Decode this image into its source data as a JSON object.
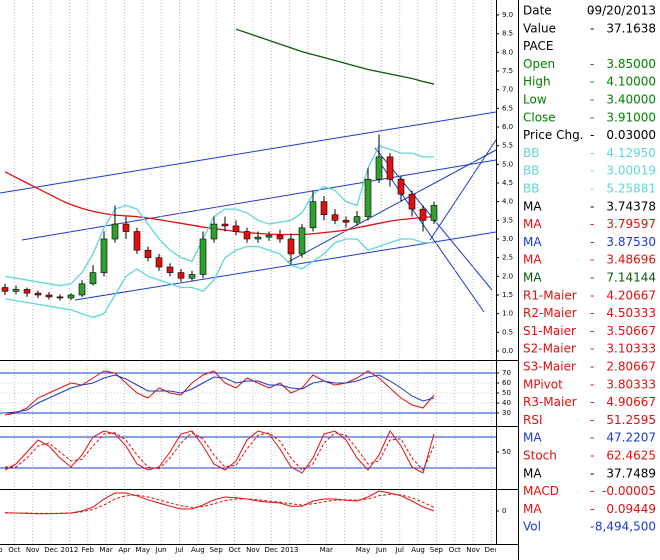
{
  "chart_data": [
    {
      "type": "candlestick",
      "open": [
        1.7,
        1.6,
        1.65,
        1.55,
        1.5,
        1.45,
        1.42,
        1.5,
        1.8,
        2.1,
        3.0,
        3.4,
        3.2,
        2.7,
        2.5,
        2.25,
        2.1,
        1.95,
        2.05,
        3.0,
        3.4,
        3.35,
        3.2,
        3.0,
        3.05,
        3.1,
        3.0,
        2.6,
        3.3,
        4.0,
        3.65,
        3.5,
        3.45,
        3.6,
        4.6,
        5.2,
        4.6,
        4.2,
        3.8,
        3.5
      ],
      "high": [
        1.8,
        1.75,
        1.7,
        1.62,
        1.58,
        1.52,
        1.55,
        1.9,
        2.3,
        3.2,
        3.9,
        3.6,
        3.3,
        2.8,
        2.6,
        2.35,
        2.2,
        2.15,
        3.2,
        3.6,
        3.6,
        3.5,
        3.3,
        3.2,
        3.2,
        3.25,
        3.15,
        3.4,
        4.3,
        4.15,
        3.8,
        3.6,
        3.75,
        4.9,
        5.8,
        5.3,
        4.7,
        4.3,
        3.9,
        4.0
      ],
      "low": [
        1.5,
        1.52,
        1.45,
        1.42,
        1.38,
        1.35,
        1.36,
        1.45,
        1.75,
        2.0,
        2.9,
        3.0,
        2.6,
        2.4,
        2.15,
        2.0,
        1.85,
        1.88,
        1.95,
        2.9,
        3.2,
        3.1,
        2.9,
        2.9,
        2.95,
        2.9,
        2.3,
        2.5,
        3.2,
        3.5,
        3.4,
        3.3,
        3.35,
        3.5,
        4.5,
        4.4,
        4.0,
        3.6,
        3.2,
        3.4
      ],
      "close": [
        1.6,
        1.65,
        1.55,
        1.5,
        1.45,
        1.42,
        1.5,
        1.8,
        2.1,
        3.0,
        3.4,
        3.2,
        2.7,
        2.5,
        2.25,
        2.1,
        1.95,
        2.05,
        3.0,
        3.4,
        3.35,
        3.2,
        3.0,
        3.05,
        3.1,
        3.0,
        2.6,
        3.3,
        4.0,
        3.65,
        3.5,
        3.45,
        3.6,
        4.6,
        5.2,
        4.6,
        4.2,
        3.8,
        3.5,
        3.9
      ],
      "series": [
        {
          "color": "#e01010",
          "values": [
            4.8,
            4.65,
            4.5,
            4.35,
            4.2,
            4.05,
            3.92,
            3.82,
            3.74,
            3.68,
            3.64,
            3.62,
            3.6,
            3.56,
            3.52,
            3.47,
            3.42,
            3.37,
            3.32,
            3.28,
            3.24,
            3.2,
            3.17,
            3.15,
            3.13,
            3.12,
            3.12,
            3.12,
            3.14,
            3.17,
            3.2,
            3.24,
            3.3,
            3.36,
            3.42,
            3.48,
            3.52,
            3.55,
            3.58,
            3.6
          ]
        },
        {
          "color": "#0a5a0a",
          "values": [
            null,
            null,
            null,
            null,
            null,
            null,
            null,
            null,
            null,
            null,
            null,
            null,
            null,
            null,
            null,
            null,
            null,
            null,
            null,
            null,
            null,
            8.62,
            8.52,
            8.42,
            8.32,
            8.22,
            8.12,
            8.02,
            7.94,
            7.86,
            7.78,
            7.7,
            7.62,
            7.54,
            7.48,
            7.42,
            7.36,
            7.3,
            7.22,
            7.15
          ]
        },
        {
          "color": "#5fd8d8",
          "values": [
            2.0,
            1.95,
            1.9,
            1.85,
            1.8,
            1.75,
            1.8,
            2.1,
            2.6,
            3.3,
            3.8,
            3.9,
            3.8,
            3.4,
            3.0,
            2.7,
            2.5,
            2.4,
            3.0,
            3.6,
            3.8,
            3.8,
            3.7,
            3.5,
            3.4,
            3.45,
            3.5,
            3.7,
            4.2,
            4.4,
            4.3,
            4.0,
            3.9,
            4.9,
            5.5,
            5.4,
            5.3,
            5.3,
            5.2,
            5.2
          ]
        },
        {
          "color": "#5fd8d8",
          "values": [
            1.4,
            1.35,
            1.3,
            1.25,
            1.2,
            1.15,
            1.1,
            1.0,
            0.9,
            1.0,
            1.5,
            2.0,
            2.2,
            2.0,
            1.9,
            1.8,
            1.7,
            1.7,
            1.6,
            1.9,
            2.5,
            2.7,
            2.8,
            2.8,
            2.7,
            2.6,
            2.3,
            2.2,
            2.4,
            2.6,
            2.9,
            3.0,
            3.0,
            2.7,
            2.8,
            2.9,
            3.0,
            3.0,
            2.9,
            2.9
          ]
        }
      ],
      "ylim": [
        0,
        9
      ],
      "yticks": [
        {
          "value": 0,
          "label": "0.0"
        },
        0.5,
        {
          "value": 1,
          "label": "1.0"
        },
        1.5,
        {
          "value": 2,
          "label": "2.0"
        },
        2.5,
        {
          "value": 3,
          "label": "3.0"
        },
        3.5,
        {
          "value": 4,
          "label": "4.0"
        },
        4.5,
        {
          "value": 5,
          "label": "5.0"
        },
        5.5,
        {
          "value": 6,
          "label": "6.0"
        },
        6.5,
        {
          "value": 7,
          "label": "7.0"
        },
        7.5,
        {
          "value": 8,
          "label": "8.0"
        },
        8.5,
        {
          "value": 9,
          "label": "9.0"
        }
      ]
    },
    {
      "type": "line",
      "ylim": [
        30,
        70
      ],
      "yticks": [
        30,
        40,
        50,
        60,
        70
      ],
      "series": [
        {
          "color": "#e01010",
          "values": [
            28,
            30,
            35,
            45,
            50,
            55,
            60,
            58,
            65,
            72,
            70,
            60,
            50,
            45,
            55,
            50,
            48,
            60,
            68,
            72,
            60,
            55,
            65,
            60,
            55,
            60,
            50,
            55,
            68,
            62,
            58,
            60,
            65,
            72,
            65,
            55,
            45,
            38,
            35,
            48
          ]
        },
        {
          "color": "#1a3cc8",
          "values": [
            30,
            31,
            33,
            40,
            45,
            50,
            55,
            58,
            60,
            65,
            68,
            64,
            58,
            52,
            52,
            52,
            50,
            54,
            60,
            66,
            65,
            60,
            62,
            62,
            58,
            58,
            55,
            54,
            60,
            62,
            60,
            60,
            62,
            66,
            68,
            62,
            55,
            47,
            42,
            45
          ]
        }
      ]
    },
    {
      "type": "line",
      "ylim": [
        0,
        100
      ],
      "yticks": [
        50
      ],
      "series": [
        {
          "color": "#e01010",
          "values": [
            20,
            30,
            50,
            70,
            60,
            40,
            25,
            45,
            75,
            85,
            80,
            60,
            30,
            20,
            25,
            50,
            80,
            85,
            60,
            30,
            20,
            35,
            70,
            85,
            80,
            55,
            25,
            15,
            40,
            80,
            85,
            70,
            40,
            20,
            45,
            85,
            60,
            25,
            15,
            80
          ]
        },
        {
          "color": "#e01010",
          "dashed": true,
          "values": [
            25,
            25,
            40,
            60,
            65,
            50,
            35,
            38,
            60,
            80,
            82,
            70,
            45,
            25,
            22,
            40,
            65,
            82,
            72,
            45,
            25,
            28,
            55,
            78,
            82,
            68,
            40,
            20,
            30,
            65,
            82,
            78,
            55,
            30,
            35,
            70,
            72,
            40,
            20,
            60
          ]
        }
      ]
    },
    {
      "type": "line",
      "ylim": [
        -0.5,
        0.5
      ],
      "yticks": [
        0
      ],
      "series": [
        {
          "color": "#e01010",
          "values": [
            -0.05,
            -0.05,
            -0.06,
            -0.07,
            -0.07,
            -0.06,
            -0.05,
            0.0,
            0.1,
            0.3,
            0.45,
            0.45,
            0.38,
            0.28,
            0.2,
            0.12,
            0.05,
            0.05,
            0.15,
            0.28,
            0.35,
            0.33,
            0.3,
            0.25,
            0.22,
            0.2,
            0.12,
            0.12,
            0.25,
            0.3,
            0.3,
            0.27,
            0.25,
            0.35,
            0.5,
            0.45,
            0.38,
            0.25,
            0.1,
            0.0
          ]
        },
        {
          "color": "#e01010",
          "dashed": true,
          "values": [
            -0.04,
            -0.05,
            -0.05,
            -0.06,
            -0.06,
            -0.06,
            -0.05,
            -0.02,
            0.04,
            0.15,
            0.3,
            0.38,
            0.4,
            0.35,
            0.28,
            0.2,
            0.13,
            0.09,
            0.11,
            0.18,
            0.26,
            0.3,
            0.3,
            0.28,
            0.25,
            0.22,
            0.18,
            0.15,
            0.18,
            0.23,
            0.27,
            0.28,
            0.27,
            0.3,
            0.38,
            0.42,
            0.4,
            0.33,
            0.22,
            0.09
          ]
        }
      ]
    }
  ],
  "time_axis": {
    "labels": [
      "Sep",
      "Oct",
      "Nov",
      "Dec",
      "2012",
      "Feb",
      "Mar",
      "Apr",
      "May",
      "Jun",
      "Jul",
      "Aug",
      "Sep",
      "Oct",
      "Nov",
      "Dec",
      "2013",
      null,
      "Mar",
      null,
      "May",
      "Jun",
      "Jul",
      "Aug",
      "Sep",
      "Oct",
      "Nov",
      "Dec"
    ]
  },
  "data_window": {
    "separator": "-",
    "rows": [
      {
        "label": "Date",
        "value": "09/20/2013",
        "color": "#000000"
      },
      {
        "label": "Value",
        "value": "37.1638",
        "color": "#000000"
      },
      {
        "label": "PACE",
        "value": null,
        "color": "#000000"
      },
      {
        "label": "Open",
        "value": "3.85000",
        "color": "#008000"
      },
      {
        "label": "High",
        "value": "4.10000",
        "color": "#008000"
      },
      {
        "label": "Low",
        "value": "3.40000",
        "color": "#008000"
      },
      {
        "label": "Close",
        "value": "3.91000",
        "color": "#008000"
      },
      {
        "label": "Price Chg.",
        "value": "0.03000",
        "color": "#000000"
      },
      {
        "label": "BB",
        "value": "4.12950",
        "color": "#5fd8d8"
      },
      {
        "label": "BB",
        "value": "3.00019",
        "color": "#5fd8d8"
      },
      {
        "label": "BB",
        "value": "5.25881",
        "color": "#5fd8d8"
      },
      {
        "label": "MA",
        "value": "3.74378",
        "color": "#000000"
      },
      {
        "label": "MA",
        "value": "3.79597",
        "color": "#e01010"
      },
      {
        "label": "MA",
        "value": "3.87530",
        "color": "#1a3cc8"
      },
      {
        "label": "MA",
        "value": "3.48696",
        "color": "#e01010"
      },
      {
        "label": "MA",
        "value": "7.14144",
        "color": "#0a5a0a"
      },
      {
        "label": "R1-Maier",
        "value": "4.20667",
        "color": "#e01010"
      },
      {
        "label": "R2-Maier",
        "value": "4.50333",
        "color": "#e01010"
      },
      {
        "label": "S1-Maier",
        "value": "3.50667",
        "color": "#e01010"
      },
      {
        "label": "S2-Maier",
        "value": "3.10333",
        "color": "#e01010"
      },
      {
        "label": "S3-Maier",
        "value": "2.80667",
        "color": "#e01010"
      },
      {
        "label": "MPivot",
        "value": "3.80333",
        "color": "#e01010"
      },
      {
        "label": "R3-Maier",
        "value": "4.90667",
        "color": "#e01010"
      },
      {
        "label": "RSI",
        "value": "51.2595",
        "color": "#e01010"
      },
      {
        "label": "MA",
        "value": "47.2207",
        "color": "#1a3cc8"
      },
      {
        "label": "Stoch",
        "value": "62.4625",
        "color": "#e01010"
      },
      {
        "label": "MA",
        "value": "37.7489",
        "color": "#000000"
      },
      {
        "label": "MACD",
        "value": "-0.00005",
        "color": "#e01010"
      },
      {
        "label": "MA",
        "value": "0.09449",
        "color": "#e01010"
      },
      {
        "label": "Vol",
        "value": "8,494,500",
        "color": "#1a3cc8"
      }
    ]
  }
}
